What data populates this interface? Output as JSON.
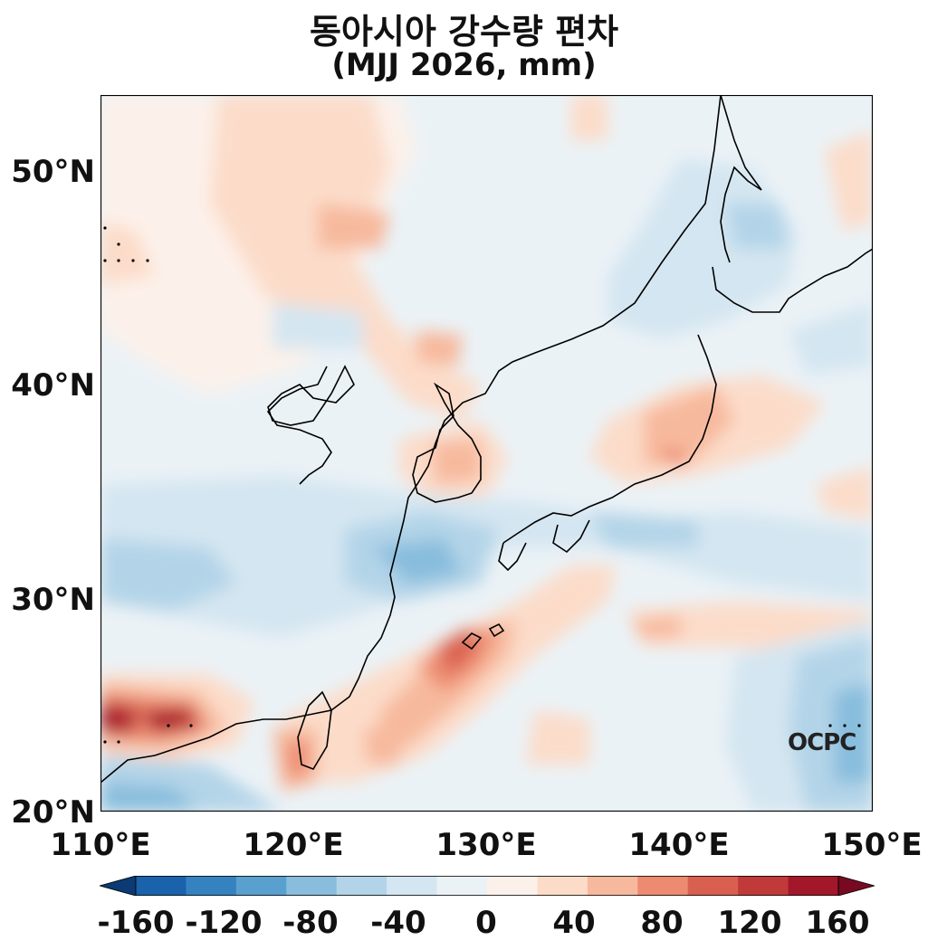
{
  "title": {
    "line1": "동아시아 강수량 편차",
    "line2": "(MJJ 2026, mm)"
  },
  "logo": "OCPC",
  "map": {
    "lon_range": [
      110,
      150
    ],
    "lat_range": [
      20,
      53.5
    ],
    "x_ticks": [
      "110°E",
      "120°E",
      "130°E",
      "140°E",
      "150°E"
    ],
    "y_ticks": [
      "50°N",
      "40°N",
      "30°N",
      "20°N"
    ],
    "colors": {
      "neg": [
        "#0b3a75",
        "#1a62ab",
        "#3582c0",
        "#5aa0cf",
        "#88bddd",
        "#b3d4e8",
        "#d4e6f1",
        "#ebf2f6"
      ],
      "pos": [
        "#fcf1ea",
        "#fcdcc9",
        "#f7b99d",
        "#ec8b70",
        "#d9604f",
        "#c03a3a",
        "#a3172a",
        "#770a21"
      ]
    }
  },
  "colorbar": {
    "labels": [
      "-160",
      "-120",
      "-80",
      "-40",
      "0",
      "40",
      "80",
      "120",
      "160"
    ],
    "colors": [
      "#0b3a75",
      "#1a62ab",
      "#3582c0",
      "#5aa0cf",
      "#88bddd",
      "#b3d4e8",
      "#d4e6f1",
      "#ebf2f6",
      "#fcf1ea",
      "#fcdcc9",
      "#f7b99d",
      "#ec8b70",
      "#d9604f",
      "#c03a3a",
      "#a3172a",
      "#770a21"
    ]
  }
}
